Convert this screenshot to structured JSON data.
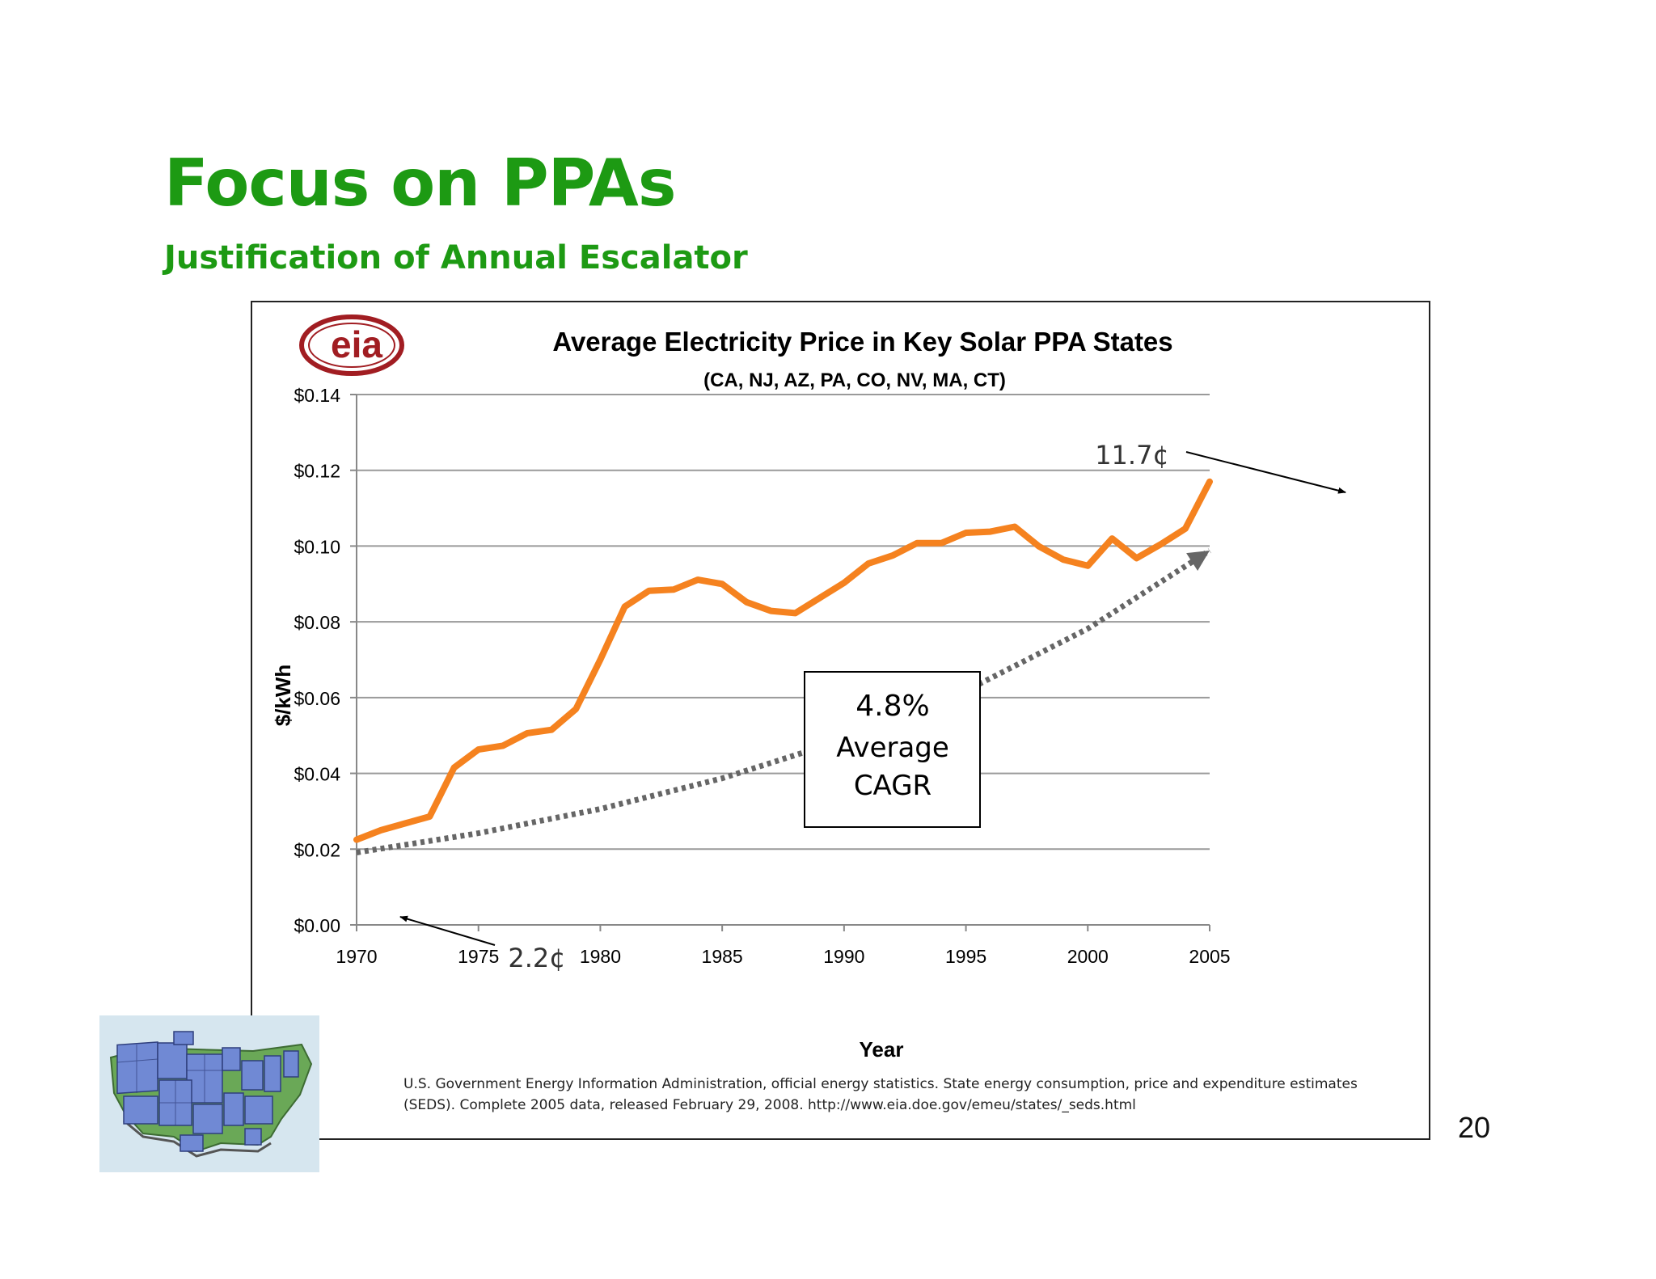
{
  "slide": {
    "title": "Focus on PPAs",
    "subtitle": "Justification of Annual Escalator",
    "page_number": "20",
    "title_color": "#1d9a13"
  },
  "logo": {
    "text": "eia",
    "color": "#a11d22",
    "icon": "eia-logo-icon"
  },
  "annotations": {
    "start_label": "2.2¢",
    "end_label": "11.7¢",
    "cagr_value": "4.8%",
    "cagr_line1": "Average",
    "cagr_line2": "CAGR"
  },
  "source": {
    "line1": "U.S. Government Energy Information Administration, official energy statistics. State energy consumption, price and expenditure estimates",
    "line2": "(SEDS). Complete 2005 data, released February 29, 2008. http://www.eia.doe.gov/emeu/states/_seds.html"
  },
  "map_thumbnail": {
    "icon": "solar-panel-usa-map-icon"
  },
  "chart_data": {
    "type": "line",
    "title": "Average Electricity Price in Key Solar PPA States",
    "subtitle": "(CA, NJ, AZ, PA, CO, NV, MA, CT)",
    "xlabel": "Year",
    "ylabel": "$/kWh",
    "xlim": [
      1970,
      2005
    ],
    "ylim": [
      0,
      0.14
    ],
    "xticks": [
      1970,
      1975,
      1980,
      1985,
      1990,
      1995,
      2000,
      2005
    ],
    "xtick_labels": [
      "1970",
      "1975",
      "1980",
      "1985",
      "1990",
      "1995",
      "2000",
      "2005"
    ],
    "yticks": [
      0,
      0.02,
      0.04,
      0.06,
      0.08,
      0.1,
      0.12,
      0.14
    ],
    "ytick_labels": [
      "$0.00",
      "$0.02",
      "$0.04",
      "$0.06",
      "$0.08",
      "$0.10",
      "$0.12",
      "$0.14"
    ],
    "grid": true,
    "series": [
      {
        "color": "#f5821f",
        "style": "solid",
        "x": [
          1970,
          1971,
          1972,
          1973,
          1974,
          1975,
          1976,
          1977,
          1978,
          1979,
          1980,
          1981,
          1982,
          1983,
          1984,
          1985,
          1986,
          1987,
          1988,
          1989,
          1990,
          1991,
          1992,
          1993,
          1994,
          1995,
          1996,
          1997,
          1998,
          1999,
          2000,
          2001,
          2002,
          2003,
          2004,
          2005
        ],
        "y": [
          0.0225,
          0.025,
          0.0268,
          0.0286,
          0.0415,
          0.0463,
          0.0473,
          0.0506,
          0.0515,
          0.057,
          0.07,
          0.084,
          0.0882,
          0.0885,
          0.0911,
          0.09,
          0.0852,
          0.0829,
          0.0823,
          0.0863,
          0.0903,
          0.0954,
          0.0975,
          0.1008,
          0.1008,
          0.1035,
          0.1038,
          0.1051,
          0.0999,
          0.0964,
          0.0948,
          0.102,
          0.0968,
          0.1005,
          0.1046,
          0.117
        ]
      },
      {
        "color": "#666666",
        "style": "dotted",
        "x": [
          1970,
          1975,
          1980,
          1985,
          1990,
          1995,
          2000,
          2005
        ],
        "y": [
          0.0191,
          0.0242,
          0.0306,
          0.0387,
          0.0489,
          0.0618,
          0.0782,
          0.0988
        ]
      }
    ]
  }
}
